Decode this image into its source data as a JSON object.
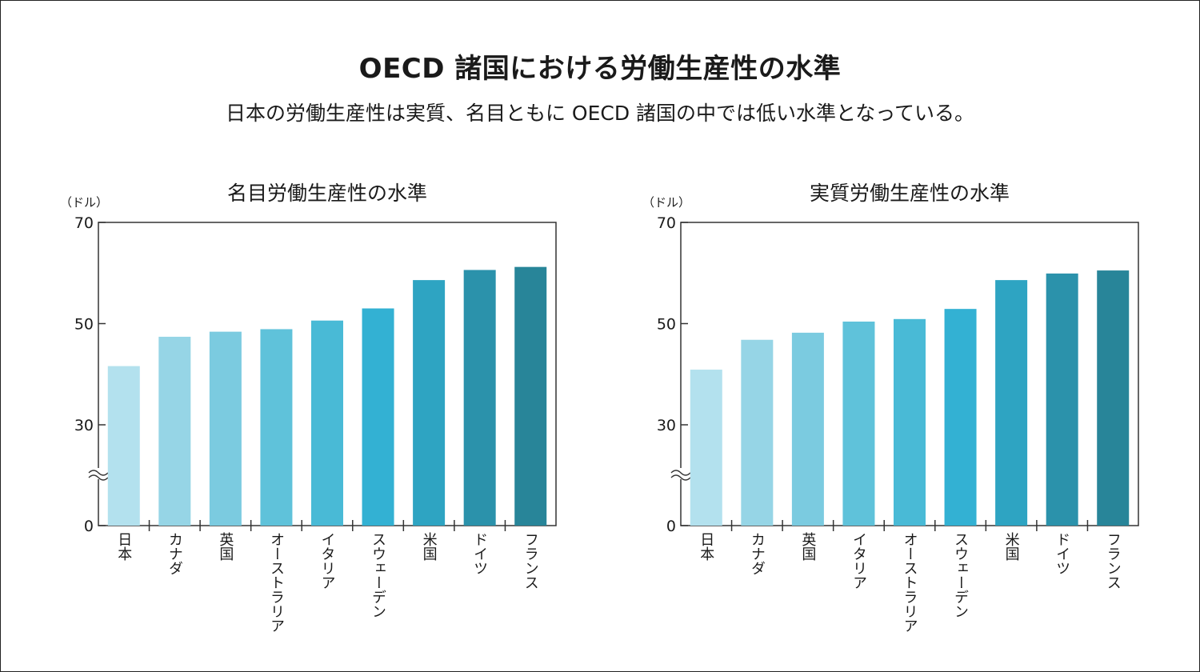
{
  "header": {
    "title": "OECD 諸国における労働生産性の水準",
    "subtitle": "日本の労働生産性は実質、名目ともに OECD 諸国の中では低い水準となっている。"
  },
  "chart_data": [
    {
      "type": "bar",
      "title": "名目労働生産性の水準",
      "unit_label": "（ドル）",
      "axis_break": true,
      "yticks": [
        0,
        30,
        50,
        70
      ],
      "ylim": [
        0,
        70
      ],
      "categories": [
        "日本",
        "カナダ",
        "英国",
        "オーストラリア",
        "イタリア",
        "スウェーデン",
        "米国",
        "ドイツ",
        "フランス"
      ],
      "values": [
        41.6,
        47.4,
        48.4,
        48.9,
        50.6,
        53.0,
        58.6,
        60.6,
        61.2
      ],
      "colors": [
        "#b3e1ee",
        "#96d5e6",
        "#7bcbe0",
        "#5fc2da",
        "#49bad6",
        "#33b1d3",
        "#2ea4c2",
        "#2b92ab",
        "#288599"
      ]
    },
    {
      "type": "bar",
      "title": "実質労働生産性の水準",
      "unit_label": "（ドル）",
      "axis_break": true,
      "yticks": [
        0,
        30,
        50,
        70
      ],
      "ylim": [
        0,
        70
      ],
      "categories": [
        "日本",
        "カナダ",
        "英国",
        "イタリア",
        "オーストラリア",
        "スウェーデン",
        "米国",
        "ドイツ",
        "フランス"
      ],
      "values": [
        40.9,
        46.8,
        48.2,
        50.4,
        50.9,
        52.9,
        58.6,
        59.9,
        60.5
      ],
      "colors": [
        "#b3e1ee",
        "#96d5e6",
        "#7bcbe0",
        "#5fc2da",
        "#49bad6",
        "#33b1d3",
        "#2ea4c2",
        "#2b92ab",
        "#288599"
      ]
    }
  ]
}
